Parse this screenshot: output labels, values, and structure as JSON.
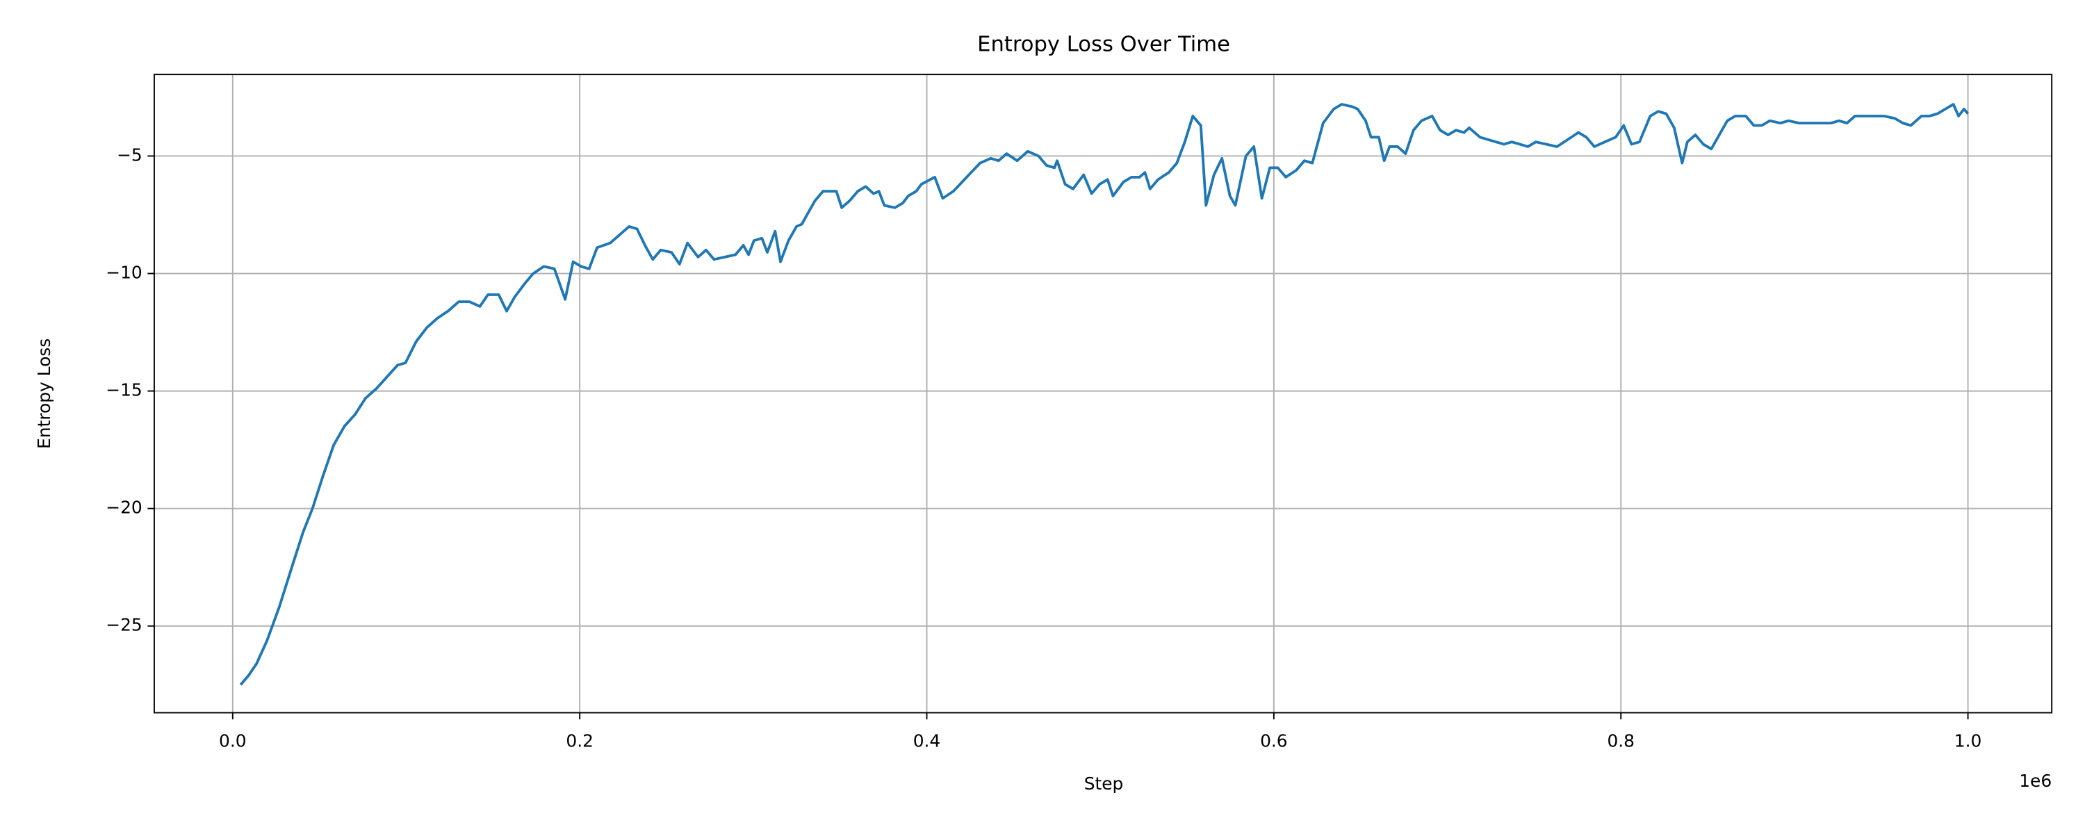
{
  "chart_data": {
    "type": "line",
    "title": "Entropy Loss Over Time",
    "x_label": "Step",
    "y_label": "Entropy Loss",
    "x_offset_label": "1e6",
    "grid": true,
    "xlim": [
      -45200,
      1048300
    ],
    "ylim": [
      -28.69,
      -1.53
    ],
    "xticks": [
      {
        "value": 0,
        "label": "0.0"
      },
      {
        "value": 200000,
        "label": "0.2"
      },
      {
        "value": 400000,
        "label": "0.4"
      },
      {
        "value": 600000,
        "label": "0.6"
      },
      {
        "value": 800000,
        "label": "0.8"
      },
      {
        "value": 1000000,
        "label": "1.0"
      }
    ],
    "yticks": [
      {
        "value": -25,
        "label": "−25"
      },
      {
        "value": -20,
        "label": "−20"
      },
      {
        "value": -15,
        "label": "−15"
      },
      {
        "value": -10,
        "label": "−10"
      },
      {
        "value": -5,
        "label": "−5"
      }
    ],
    "x": [
      4600,
      9200,
      13800,
      19900,
      26800,
      34500,
      40600,
      46000,
      52100,
      58200,
      64400,
      70500,
      76600,
      82800,
      88900,
      95000,
      99600,
      105700,
      111900,
      118000,
      124100,
      130300,
      136400,
      142500,
      147100,
      153300,
      157900,
      162500,
      168600,
      173200,
      179300,
      185400,
      191600,
      196200,
      200800,
      205400,
      210000,
      217600,
      223800,
      228400,
      233000,
      237600,
      242100,
      246700,
      252900,
      257500,
      262100,
      268200,
      272800,
      277400,
      283500,
      289700,
      294300,
      297300,
      300400,
      305000,
      308100,
      312600,
      315700,
      320300,
      324900,
      328000,
      331000,
      335600,
      340200,
      347900,
      351000,
      355600,
      360200,
      364800,
      369300,
      372400,
      375500,
      381600,
      386200,
      389300,
      393900,
      396900,
      404600,
      409200,
      415300,
      423000,
      430700,
      436800,
      441400,
      446000,
      452100,
      458200,
      464400,
      469000,
      473600,
      475100,
      479700,
      484300,
      490400,
      495000,
      499600,
      504200,
      507300,
      513400,
      518000,
      522600,
      525700,
      528700,
      533300,
      539500,
      544100,
      548700,
      553300,
      557900,
      560900,
      565500,
      570100,
      574700,
      577800,
      583900,
      588500,
      593100,
      597700,
      602300,
      606900,
      613000,
      617600,
      622200,
      628400,
      634500,
      639100,
      645200,
      648300,
      652900,
      656000,
      660500,
      663600,
      666700,
      671300,
      675900,
      680500,
      685100,
      691200,
      695800,
      700400,
      705000,
      709600,
      712600,
      718800,
      723400,
      728000,
      732600,
      737100,
      741800,
      746400,
      751000,
      757100,
      763200,
      769400,
      775500,
      780100,
      784700,
      790800,
      797000,
      801600,
      806100,
      810700,
      816900,
      821500,
      826100,
      830700,
      835300,
      838300,
      842900,
      847500,
      852100,
      856700,
      861300,
      865900,
      872000,
      876600,
      881200,
      885800,
      892000,
      896600,
      902700,
      910400,
      916500,
      921100,
      925700,
      930300,
      934900,
      939500,
      945600,
      951700,
      957900,
      962500,
      967100,
      973200,
      977800,
      982400,
      987000,
      991600,
      994600,
      997700,
      1000000
    ],
    "series": [
      {
        "name": "Entropy Loss",
        "color": "#1f77b4",
        "values": [
          -27.5,
          -27.1,
          -26.6,
          -25.6,
          -24.2,
          -22.4,
          -21.0,
          -20.0,
          -18.6,
          -17.3,
          -16.5,
          -16.0,
          -15.3,
          -14.9,
          -14.4,
          -13.9,
          -13.8,
          -12.9,
          -12.3,
          -11.9,
          -11.6,
          -11.2,
          -11.2,
          -11.4,
          -10.9,
          -10.9,
          -11.6,
          -11.0,
          -10.4,
          -10.0,
          -9.7,
          -9.8,
          -11.1,
          -9.5,
          -9.7,
          -9.8,
          -8.9,
          -8.7,
          -8.3,
          -8.0,
          -8.1,
          -8.8,
          -9.4,
          -9.0,
          -9.1,
          -9.6,
          -8.7,
          -9.3,
          -9.0,
          -9.4,
          -9.3,
          -9.2,
          -8.8,
          -9.2,
          -8.6,
          -8.5,
          -9.1,
          -8.2,
          -9.5,
          -8.6,
          -8.0,
          -7.9,
          -7.5,
          -6.9,
          -6.5,
          -6.5,
          -7.2,
          -6.9,
          -6.5,
          -6.3,
          -6.6,
          -6.5,
          -7.1,
          -7.2,
          -7.0,
          -6.7,
          -6.5,
          -6.2,
          -5.9,
          -6.8,
          -6.5,
          -5.9,
          -5.3,
          -5.1,
          -5.2,
          -4.9,
          -5.2,
          -4.8,
          -5.0,
          -5.4,
          -5.5,
          -5.2,
          -6.2,
          -6.4,
          -5.8,
          -6.6,
          -6.2,
          -6.0,
          -6.7,
          -6.1,
          -5.9,
          -5.9,
          -5.7,
          -6.4,
          -6.0,
          -5.7,
          -5.3,
          -4.4,
          -3.3,
          -3.7,
          -7.1,
          -5.8,
          -5.1,
          -6.7,
          -7.1,
          -5.0,
          -4.6,
          -6.8,
          -5.5,
          -5.5,
          -5.9,
          -5.6,
          -5.2,
          -5.3,
          -3.6,
          -3.0,
          -2.8,
          -2.9,
          -3.0,
          -3.5,
          -4.2,
          -4.2,
          -5.2,
          -4.6,
          -4.6,
          -4.9,
          -3.9,
          -3.5,
          -3.3,
          -3.9,
          -4.1,
          -3.9,
          -4.0,
          -3.8,
          -4.2,
          -4.3,
          -4.4,
          -4.5,
          -4.4,
          -4.5,
          -4.6,
          -4.4,
          -4.5,
          -4.6,
          -4.3,
          -4.0,
          -4.2,
          -4.6,
          -4.4,
          -4.2,
          -3.7,
          -4.5,
          -4.4,
          -3.3,
          -3.1,
          -3.2,
          -3.8,
          -5.3,
          -4.4,
          -4.1,
          -4.5,
          -4.7,
          -4.1,
          -3.5,
          -3.3,
          -3.3,
          -3.7,
          -3.7,
          -3.5,
          -3.6,
          -3.5,
          -3.6,
          -3.6,
          -3.6,
          -3.6,
          -3.5,
          -3.6,
          -3.3,
          -3.3,
          -3.3,
          -3.3,
          -3.4,
          -3.6,
          -3.7,
          -3.3,
          -3.3,
          -3.2,
          -3.0,
          -2.8,
          -3.3,
          -3.0,
          -3.2
        ]
      }
    ]
  }
}
